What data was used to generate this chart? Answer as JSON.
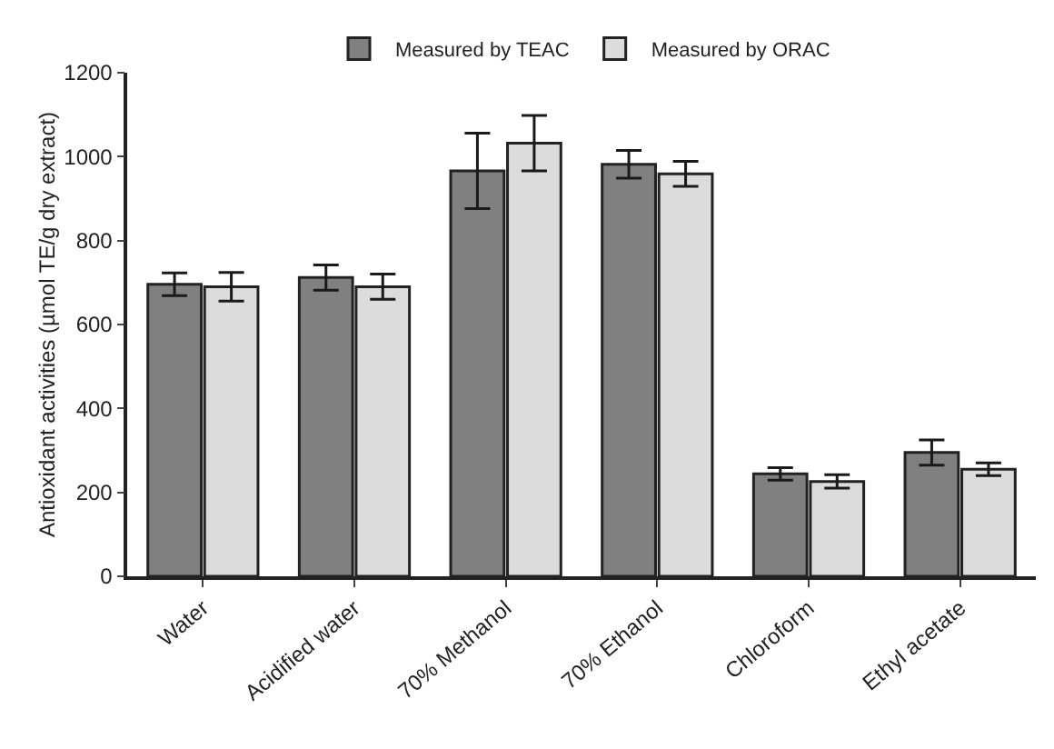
{
  "chart_data": {
    "type": "bar",
    "ylabel": "Antioxidant activities (µmol TE/g dry extract)",
    "categories": [
      "Water",
      "Acidified water",
      "70% Methanol",
      "70% Ethanol",
      "Chloroform",
      "Ethyl acetate"
    ],
    "series": [
      {
        "name": "Measured by TEAC",
        "color": "#808080",
        "values": [
          696,
          712,
          966,
          982,
          244,
          295
        ],
        "errors": [
          27,
          30,
          90,
          33,
          15,
          30
        ]
      },
      {
        "name": "Measured by ORAC",
        "color": "#dcdcdc",
        "values": [
          690,
          690,
          1032,
          959,
          226,
          255
        ],
        "errors": [
          34,
          30,
          66,
          30,
          16,
          15
        ]
      }
    ],
    "ylim": [
      0,
      1200
    ],
    "yticks": [
      0,
      200,
      400,
      600,
      800,
      1000,
      1200
    ],
    "grid": false,
    "legend": "top"
  }
}
